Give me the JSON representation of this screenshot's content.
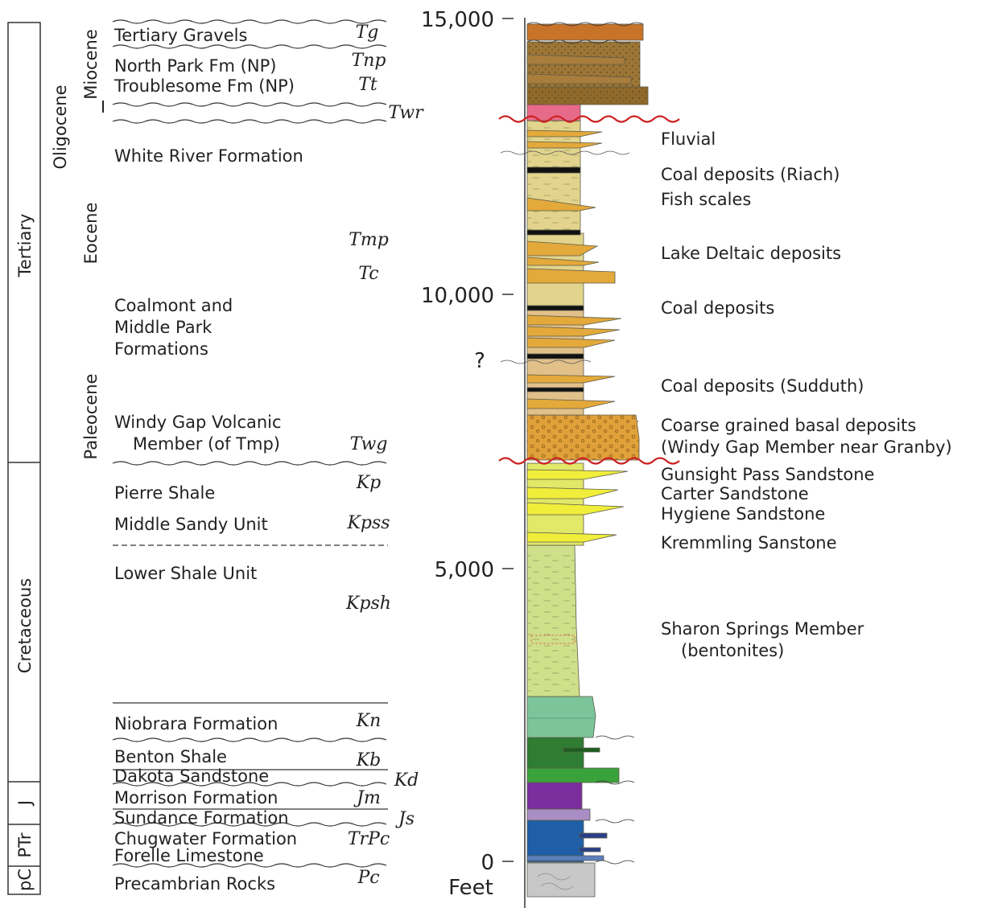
{
  "periods": [
    {
      "label": "Tertiary"
    },
    {
      "label": "Cretaceous"
    },
    {
      "label": "J"
    },
    {
      "label": "PTr"
    },
    {
      "label": "pC"
    }
  ],
  "epochs": [
    {
      "label": "Miocene"
    },
    {
      "label": "Oligocene"
    },
    {
      "label": "Eocene"
    },
    {
      "label": "Paleocene"
    }
  ],
  "formations": [
    {
      "name": "Tertiary Gravels",
      "symbol": "Tg"
    },
    {
      "name": "North Park Fm (NP)",
      "symbol": "Tnp"
    },
    {
      "name": "Troublesome Fm (NP)",
      "symbol": "Tt"
    },
    {
      "name": "",
      "symbol": "Twr"
    },
    {
      "name": "White River Formation",
      "symbol": ""
    },
    {
      "name": "",
      "symbol": "Tmp"
    },
    {
      "name": "",
      "symbol": "Tc"
    },
    {
      "name": "Coalmont and",
      "symbol": ""
    },
    {
      "name": "Middle Park",
      "symbol": ""
    },
    {
      "name": "Formations",
      "symbol": ""
    },
    {
      "name": "Windy Gap Volcanic",
      "symbol": ""
    },
    {
      "name": "Member (of Tmp)",
      "symbol": "Twg"
    },
    {
      "name": "Pierre Shale",
      "symbol": "Kp"
    },
    {
      "name": "Middle Sandy Unit",
      "symbol": "Kpss"
    },
    {
      "name": "Lower Shale Unit",
      "symbol": ""
    },
    {
      "name": "",
      "symbol": "Kpsh"
    },
    {
      "name": "Niobrara Formation",
      "symbol": "Kn"
    },
    {
      "name": "Benton Shale",
      "symbol": "Kb"
    },
    {
      "name": "Dakota Sandstone",
      "symbol": "Kd"
    },
    {
      "name": "Morrison Formation",
      "symbol": "Jm"
    },
    {
      "name": "Sundance Formation",
      "symbol": "Js"
    },
    {
      "name": "Chugwater Formation",
      "symbol": "TrPc"
    },
    {
      "name": "Forelle Limestone",
      "symbol": ""
    },
    {
      "name": "Precambrian Rocks",
      "symbol": "Pc"
    }
  ],
  "depth_axis": {
    "ticks": [
      "15,000",
      "10,000",
      "5,000",
      "0"
    ],
    "unit": "Feet",
    "uncertain_marker": "?"
  },
  "annotations": [
    "Fluvial",
    "Coal deposits (Riach)",
    "Fish scales",
    "Lake Deltaic deposits",
    "Coal deposits",
    "Coal deposits (Sudduth)",
    "Coarse grained basal deposits",
    "(Windy Gap Member near Granby)",
    "Gunsight Pass Sandstone",
    "Carter Sandstone",
    "Hygiene Sandstone",
    "Kremmling Sanstone",
    "Sharon Springs Member",
    "(bentonites)"
  ],
  "colors": {
    "unconformity": "#cc2222",
    "gravels": "#c8732a",
    "north_park": "#8f6a2c",
    "white_river": "#e8a0a0",
    "coalmont": "#e2d48c",
    "sandstone_tongue": "#e3a93a",
    "windy_gap": "#e0a03a",
    "pierre_upper": "#dde65a",
    "pierre_shale": "#cfe08a",
    "niobrara": "#7cc49a",
    "benton": "#2e7d32",
    "dakota": "#3aa23a",
    "morrison": "#7b2e9e",
    "chugwater": "#1f5fa8",
    "precambrian": "#c8c8c8"
  }
}
